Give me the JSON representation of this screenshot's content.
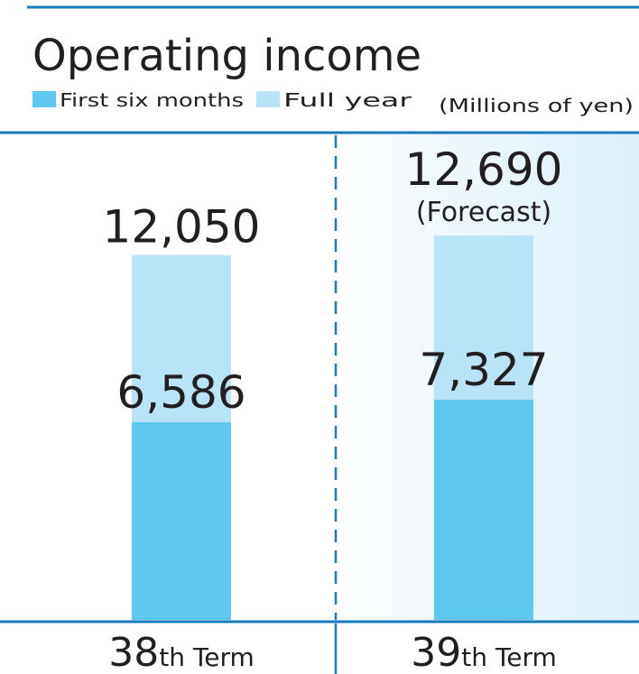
{
  "chart_data": {
    "type": "bar",
    "title": "Operating income",
    "unit": "(Millions of yen)",
    "categories": [
      "38th Term",
      "39th Term"
    ],
    "category_parts": [
      {
        "number": "38",
        "suffix": "th Term"
      },
      {
        "number": "39",
        "suffix": "th Term"
      }
    ],
    "series": [
      {
        "name": "First six months",
        "values": [
          6586,
          7327
        ],
        "labels": [
          "6,586",
          "7,327"
        ]
      },
      {
        "name": "Full year",
        "values": [
          12050,
          12690
        ],
        "labels": [
          "12,050",
          "12,690"
        ]
      }
    ],
    "annotations": [
      {
        "category": "39th Term",
        "series": "Full year",
        "text": "(Forecast)"
      }
    ],
    "ylim": [
      0,
      16000
    ],
    "grid": false,
    "legend_position": "top-left",
    "colors": {
      "first_six_months": "#5ec8ee",
      "full_year": "#b9e3f7",
      "rule": "#1a7ab9",
      "forecast_panel": "#e6f4fb"
    }
  }
}
